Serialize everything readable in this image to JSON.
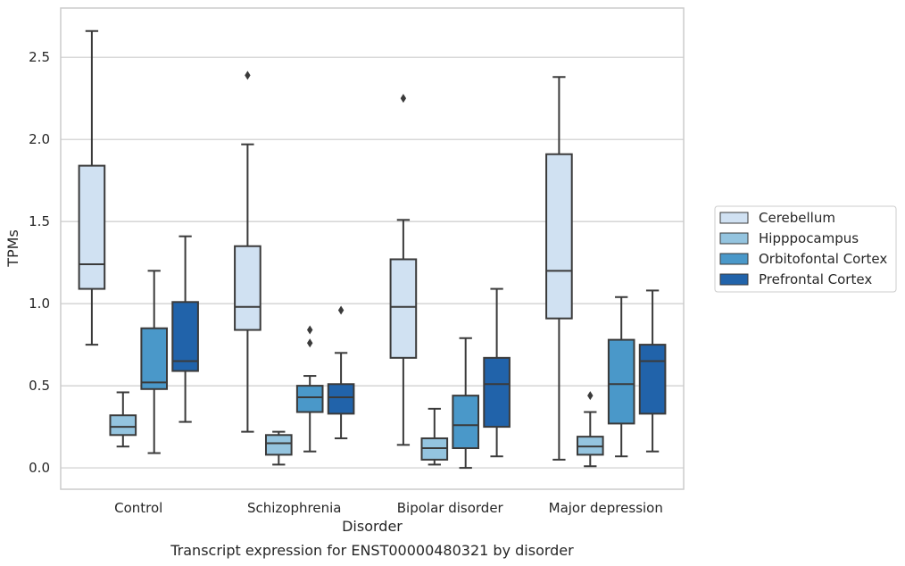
{
  "chart_data": {
    "type": "boxplot",
    "xlabel": "Disorder",
    "ylabel": "TPMs",
    "caption": "Transcript expression for ENST00000480321 by disorder",
    "ylim": [
      -0.13,
      2.8
    ],
    "yticks": [
      0.0,
      0.5,
      1.0,
      1.5,
      2.0,
      2.5
    ],
    "ytick_labels": [
      "0.0",
      "0.5",
      "1.0",
      "1.5",
      "2.0",
      "2.5"
    ],
    "grid": "horizontal",
    "legend_position": "right",
    "categories": [
      "Control",
      "Schizophrenia",
      "Bipolar disorder",
      "Major depression"
    ],
    "series": [
      {
        "name": "Cerebellum",
        "color": "#d0e1f2",
        "boxes": [
          {
            "whislo": 0.75,
            "q1": 1.09,
            "med": 1.24,
            "q3": 1.84,
            "whishi": 2.66,
            "fliers": []
          },
          {
            "whislo": 0.22,
            "q1": 0.84,
            "med": 0.98,
            "q3": 1.35,
            "whishi": 1.97,
            "fliers": [
              2.39
            ]
          },
          {
            "whislo": 0.14,
            "q1": 0.67,
            "med": 0.98,
            "q3": 1.27,
            "whishi": 1.51,
            "fliers": [
              2.25
            ]
          },
          {
            "whislo": 0.05,
            "q1": 0.91,
            "med": 1.2,
            "q3": 1.91,
            "whishi": 2.38,
            "fliers": []
          }
        ]
      },
      {
        "name": "Hipppocampus",
        "color": "#94c4df",
        "boxes": [
          {
            "whislo": 0.13,
            "q1": 0.2,
            "med": 0.25,
            "q3": 0.32,
            "whishi": 0.46,
            "fliers": []
          },
          {
            "whislo": 0.02,
            "q1": 0.08,
            "med": 0.15,
            "q3": 0.2,
            "whishi": 0.22,
            "fliers": []
          },
          {
            "whislo": 0.02,
            "q1": 0.05,
            "med": 0.12,
            "q3": 0.18,
            "whishi": 0.36,
            "fliers": []
          },
          {
            "whislo": 0.01,
            "q1": 0.08,
            "med": 0.13,
            "q3": 0.19,
            "whishi": 0.34,
            "fliers": [
              0.44
            ]
          }
        ]
      },
      {
        "name": "Orbitofontal Cortex",
        "color": "#4a98c9",
        "boxes": [
          {
            "whislo": 0.09,
            "q1": 0.48,
            "med": 0.52,
            "q3": 0.85,
            "whishi": 1.2,
            "fliers": []
          },
          {
            "whislo": 0.1,
            "q1": 0.34,
            "med": 0.43,
            "q3": 0.5,
            "whishi": 0.56,
            "fliers": [
              0.76,
              0.84
            ]
          },
          {
            "whislo": 0.0,
            "q1": 0.12,
            "med": 0.26,
            "q3": 0.44,
            "whishi": 0.79,
            "fliers": []
          },
          {
            "whislo": 0.07,
            "q1": 0.27,
            "med": 0.51,
            "q3": 0.78,
            "whishi": 1.04,
            "fliers": []
          }
        ]
      },
      {
        "name": "Prefrontal Cortex",
        "color": "#2163aa",
        "boxes": [
          {
            "whislo": 0.28,
            "q1": 0.59,
            "med": 0.65,
            "q3": 1.01,
            "whishi": 1.41,
            "fliers": []
          },
          {
            "whislo": 0.18,
            "q1": 0.33,
            "med": 0.43,
            "q3": 0.51,
            "whishi": 0.7,
            "fliers": [
              0.96
            ]
          },
          {
            "whislo": 0.07,
            "q1": 0.25,
            "med": 0.51,
            "q3": 0.67,
            "whishi": 1.09,
            "fliers": []
          },
          {
            "whislo": 0.1,
            "q1": 0.33,
            "med": 0.65,
            "q3": 0.75,
            "whishi": 1.08,
            "fliers": []
          }
        ]
      }
    ]
  }
}
